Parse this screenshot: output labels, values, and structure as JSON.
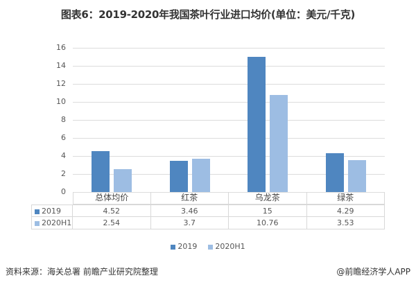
{
  "title": "图表6：2019-2020年我国茶叶行业进口均价(单位：美元/千克)",
  "chart_data": {
    "type": "bar",
    "title": "图表6：2019-2020年我国茶叶行业进口均价(单位：美元/千克)",
    "categories": [
      "总体均价",
      "红茶",
      "乌龙茶",
      "绿茶"
    ],
    "series": [
      {
        "name": "2019",
        "values": [
          4.52,
          3.46,
          15,
          4.29
        ],
        "color": "#4f86c0"
      },
      {
        "name": "2020H1",
        "values": [
          2.54,
          3.7,
          10.76,
          3.53
        ],
        "color": "#9dbde3"
      }
    ],
    "xlabel": "",
    "ylabel": "",
    "ylim": [
      0,
      16
    ],
    "yticks": [
      "0",
      "2",
      "4",
      "6",
      "8",
      "10",
      "12",
      "14",
      "16"
    ],
    "grid": true,
    "legend_position": "bottom",
    "data_table": true
  },
  "table": {
    "rows": [
      {
        "label": "2019",
        "values": [
          "4.52",
          "3.46",
          "15",
          "4.29"
        ]
      },
      {
        "label": "2020H1",
        "values": [
          "2.54",
          "3.7",
          "10.76",
          "3.53"
        ]
      }
    ]
  },
  "legend": {
    "items": [
      "2019",
      "2020H1"
    ]
  },
  "footer": {
    "source": "资料来源：海关总署 前瞻产业研究院整理",
    "credit": "@前瞻经济学人APP"
  }
}
